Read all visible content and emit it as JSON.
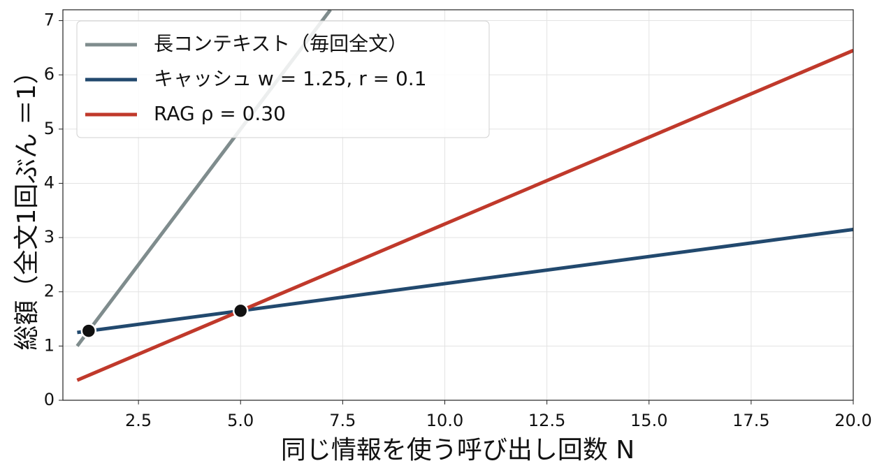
{
  "chart_data": {
    "type": "line",
    "xlabel": "同じ情報を使う呼び出し回数 N",
    "ylabel": "総額（全文1回ぶん ＝1）",
    "xlim": [
      0.65,
      20
    ],
    "ylim": [
      0,
      7.2
    ],
    "xticks": [
      2.5,
      {
        "value": 5,
        "label": "5.0"
      },
      7.5,
      {
        "value": 10,
        "label": "10.0"
      },
      12.5,
      {
        "value": 15,
        "label": "15.0"
      },
      17.5,
      {
        "value": 20,
        "label": "20.0"
      }
    ],
    "yticks": [
      0,
      1,
      2,
      3,
      4,
      5,
      6,
      7
    ],
    "grid": true,
    "legend": "upper left",
    "series": [
      {
        "name": "長コンテキスト（毎回全文）",
        "color": "#7f8c8d",
        "x": [
          1,
          7.2
        ],
        "values": [
          1,
          7.2
        ]
      },
      {
        "name": "キャッシュ w = 1.25,  r = 0.1",
        "color": "#22496e",
        "x": [
          1,
          20
        ],
        "values": [
          1.25,
          3.15
        ]
      },
      {
        "name": "RAG ρ = 0.30",
        "color": "#c0392b",
        "x": [
          1,
          20
        ],
        "values": [
          0.37,
          6.45
        ]
      }
    ],
    "markers": {
      "color": "#111111",
      "x": [
        1.28,
        5
      ],
      "values": [
        1.28,
        1.65
      ]
    }
  }
}
